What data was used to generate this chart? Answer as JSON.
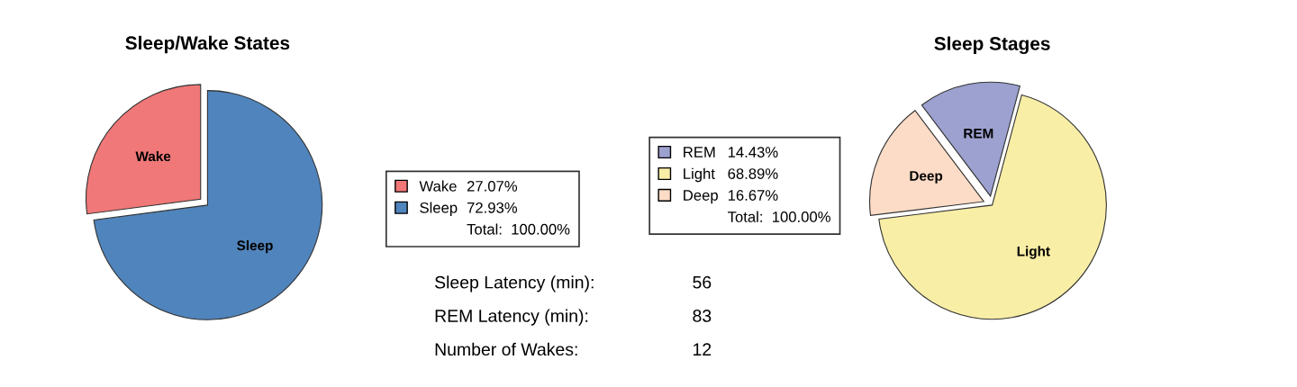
{
  "chart_data": [
    {
      "type": "pie",
      "title": "Sleep/Wake States",
      "categories": [
        "Wake",
        "Sleep"
      ],
      "values": [
        27.07,
        72.93
      ],
      "colors": [
        "#f07878",
        "#5084bc"
      ],
      "value_labels": [
        "27.07%",
        "72.93%"
      ],
      "legend": "right",
      "annotations": [
        "Total:  100.00%"
      ]
    },
    {
      "type": "pie",
      "title": "Sleep Stages",
      "categories": [
        "REM",
        "Light",
        "Deep"
      ],
      "values": [
        14.43,
        68.89,
        16.67
      ],
      "colors": [
        "#9ca1d0",
        "#f9eea6",
        "#fcdcc6"
      ],
      "value_labels": [
        "14.43%",
        "68.89%",
        "16.67%"
      ],
      "legend": "left",
      "annotations": [
        "Total:  100.00%"
      ]
    },
    {
      "type": "other",
      "annotations": [
        "Sleep Latency (min):",
        "56",
        "REM Latency (min):",
        "83",
        "Number of Wakes:",
        "12"
      ]
    }
  ]
}
